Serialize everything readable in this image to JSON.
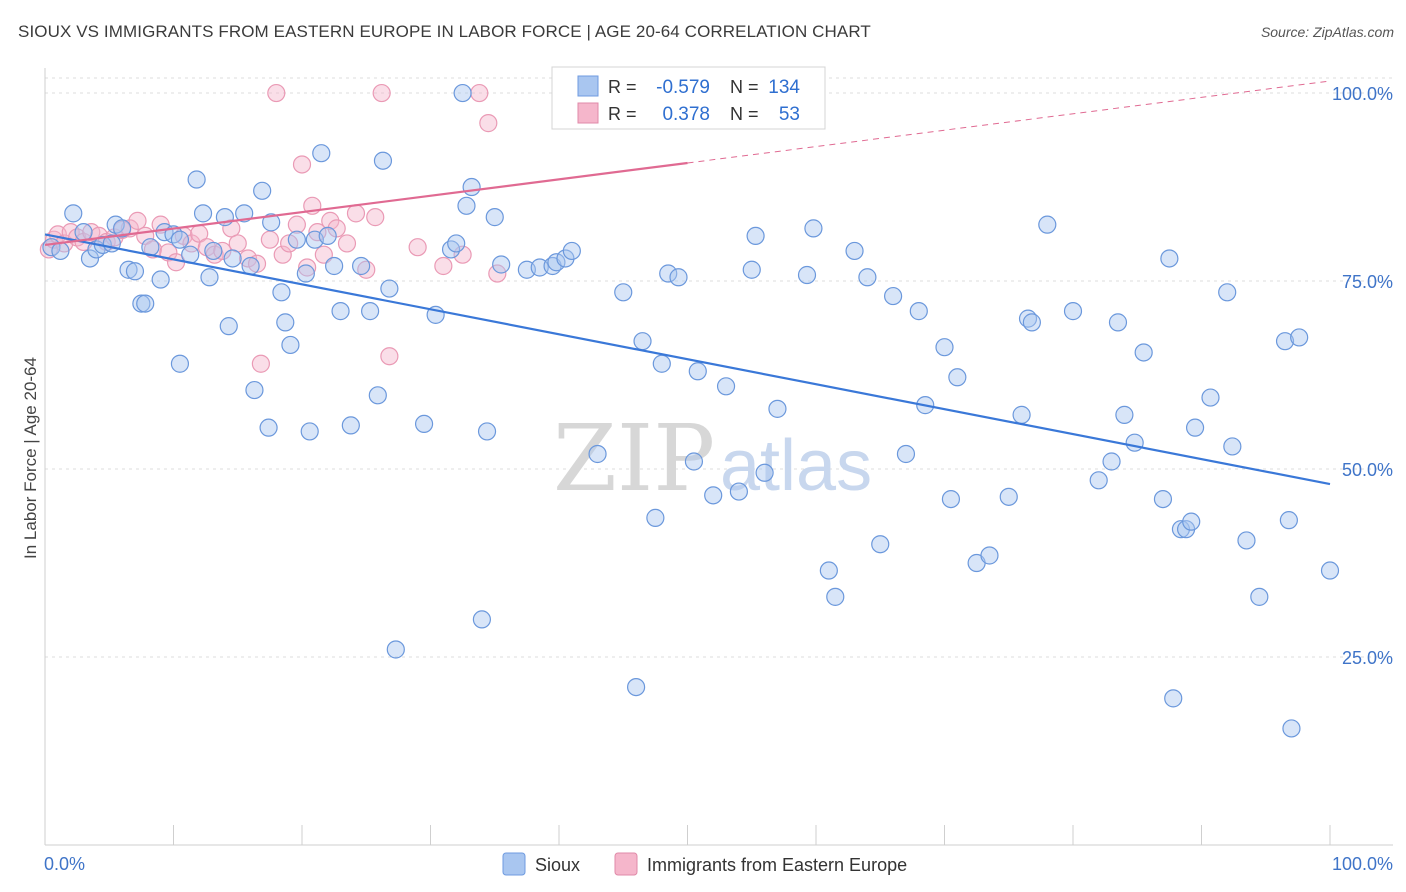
{
  "title": "SIOUX VS IMMIGRANTS FROM EASTERN EUROPE IN LABOR FORCE | AGE 20-64 CORRELATION CHART",
  "source": "Source: ZipAtlas.com",
  "watermark": {
    "zip": "ZIP",
    "atlas": "atlas"
  },
  "colors": {
    "blue": "#3a78d8",
    "blue_fill": "#a9c6f0",
    "pink": "#e06a92",
    "pink_fill": "#f5b6cb",
    "tick": "#3f74c8"
  },
  "chart_data": {
    "type": "scatter",
    "title": "SIOUX VS IMMIGRANTS FROM EASTERN EUROPE IN LABOR FORCE | AGE 20-64 CORRELATION CHART",
    "xlabel": "",
    "ylabel": "In Labor Force | Age 20-64",
    "xlim": [
      0,
      100
    ],
    "ylim": [
      0,
      102
    ],
    "x_tick_labels": [
      "0.0%",
      "100.0%"
    ],
    "y_ticks": [
      25,
      50,
      75,
      100
    ],
    "y_tick_labels": [
      "25.0%",
      "50.0%",
      "75.0%",
      "100.0%"
    ],
    "grid": true,
    "legend_position": "bottom-center",
    "stats": [
      {
        "r_label": "R =",
        "r": "-0.579",
        "n_label": "N =",
        "n": "134"
      },
      {
        "r_label": "R =",
        "r": "0.378",
        "n_label": "N =",
        "n": "53"
      }
    ],
    "series": [
      {
        "name": "Sioux",
        "trend": {
          "x": [
            0,
            100
          ],
          "y": [
            81.2,
            48.0
          ]
        },
        "points": [
          [
            0.5,
            79.5
          ],
          [
            1.2,
            79.0
          ],
          [
            2.2,
            84.0
          ],
          [
            3.0,
            81.5
          ],
          [
            3.5,
            78.0
          ],
          [
            4.0,
            79.2
          ],
          [
            4.5,
            79.8
          ],
          [
            5.2,
            80.0
          ],
          [
            5.5,
            82.5
          ],
          [
            6.0,
            82.0
          ],
          [
            6.5,
            76.5
          ],
          [
            7.0,
            76.3
          ],
          [
            7.5,
            72.0
          ],
          [
            7.8,
            72.0
          ],
          [
            8.2,
            79.5
          ],
          [
            9.0,
            75.2
          ],
          [
            9.3,
            81.5
          ],
          [
            10.0,
            81.2
          ],
          [
            10.5,
            80.5
          ],
          [
            10.5,
            64.0
          ],
          [
            11.3,
            78.5
          ],
          [
            11.8,
            88.5
          ],
          [
            12.3,
            84.0
          ],
          [
            12.8,
            75.5
          ],
          [
            13.1,
            79.0
          ],
          [
            14.0,
            83.5
          ],
          [
            14.3,
            69.0
          ],
          [
            14.6,
            78.0
          ],
          [
            15.5,
            84.0
          ],
          [
            16.0,
            77.0
          ],
          [
            16.3,
            60.5
          ],
          [
            16.9,
            87.0
          ],
          [
            17.4,
            55.5
          ],
          [
            17.6,
            82.8
          ],
          [
            18.4,
            73.5
          ],
          [
            18.7,
            69.5
          ],
          [
            19.1,
            66.5
          ],
          [
            19.6,
            80.5
          ],
          [
            20.3,
            76.0
          ],
          [
            20.6,
            55.0
          ],
          [
            21.0,
            80.5
          ],
          [
            21.5,
            92.0
          ],
          [
            22.0,
            81.0
          ],
          [
            22.5,
            77.0
          ],
          [
            23.0,
            71.0
          ],
          [
            23.8,
            55.8
          ],
          [
            24.6,
            77.0
          ],
          [
            25.3,
            71.0
          ],
          [
            25.9,
            59.8
          ],
          [
            26.3,
            91.0
          ],
          [
            26.8,
            74.0
          ],
          [
            27.3,
            26.0
          ],
          [
            29.5,
            56.0
          ],
          [
            30.4,
            70.5
          ],
          [
            31.6,
            79.2
          ],
          [
            32.0,
            80.0
          ],
          [
            32.5,
            100.0
          ],
          [
            32.8,
            85.0
          ],
          [
            33.2,
            87.5
          ],
          [
            34.0,
            30.0
          ],
          [
            34.4,
            55.0
          ],
          [
            35.0,
            83.5
          ],
          [
            35.5,
            77.2
          ],
          [
            37.5,
            76.5
          ],
          [
            38.5,
            76.8
          ],
          [
            39.5,
            77.0
          ],
          [
            39.8,
            77.5
          ],
          [
            40.5,
            78.0
          ],
          [
            41.0,
            79.0
          ],
          [
            43.0,
            52.0
          ],
          [
            45.0,
            73.5
          ],
          [
            46.0,
            21.0
          ],
          [
            46.5,
            67.0
          ],
          [
            47.5,
            43.5
          ],
          [
            48.0,
            64.0
          ],
          [
            48.5,
            76.0
          ],
          [
            49.3,
            75.5
          ],
          [
            50.5,
            51.0
          ],
          [
            50.8,
            63.0
          ],
          [
            52.0,
            46.5
          ],
          [
            53.0,
            61.0
          ],
          [
            54.0,
            47.0
          ],
          [
            55.0,
            76.5
          ],
          [
            55.3,
            81.0
          ],
          [
            56.0,
            49.5
          ],
          [
            57.0,
            58.0
          ],
          [
            59.3,
            75.8
          ],
          [
            59.8,
            82.0
          ],
          [
            61.0,
            36.5
          ],
          [
            61.5,
            33.0
          ],
          [
            63.0,
            79.0
          ],
          [
            64.0,
            75.5
          ],
          [
            65.0,
            40.0
          ],
          [
            66.0,
            73.0
          ],
          [
            67.0,
            52.0
          ],
          [
            68.0,
            71.0
          ],
          [
            68.5,
            58.5
          ],
          [
            70.0,
            66.2
          ],
          [
            70.5,
            46.0
          ],
          [
            71.0,
            62.2
          ],
          [
            72.5,
            37.5
          ],
          [
            73.5,
            38.5
          ],
          [
            75.0,
            46.3
          ],
          [
            76.0,
            57.2
          ],
          [
            76.5,
            70.0
          ],
          [
            76.8,
            69.5
          ],
          [
            78.0,
            82.5
          ],
          [
            80.0,
            71.0
          ],
          [
            82.0,
            48.5
          ],
          [
            83.0,
            51.0
          ],
          [
            83.5,
            69.5
          ],
          [
            84.0,
            57.2
          ],
          [
            84.8,
            53.5
          ],
          [
            85.5,
            65.5
          ],
          [
            87.0,
            46.0
          ],
          [
            87.5,
            78.0
          ],
          [
            87.8,
            19.5
          ],
          [
            88.4,
            42.0
          ],
          [
            88.8,
            42.0
          ],
          [
            89.2,
            43.0
          ],
          [
            89.5,
            55.5
          ],
          [
            90.7,
            59.5
          ],
          [
            92.0,
            73.5
          ],
          [
            92.4,
            53.0
          ],
          [
            93.5,
            40.5
          ],
          [
            94.5,
            33.0
          ],
          [
            96.5,
            67.0
          ],
          [
            96.8,
            43.2
          ],
          [
            97.0,
            15.5
          ],
          [
            97.6,
            67.5
          ],
          [
            100.0,
            36.5
          ]
        ]
      },
      {
        "name": "Immigrants from Eastern Europe",
        "trend": {
          "x": [
            0,
            50
          ],
          "y": [
            79.8,
            90.7
          ]
        },
        "trend_dashed": {
          "x": [
            50,
            100
          ],
          "y": [
            90.7,
            101.6
          ]
        },
        "points": [
          [
            0.3,
            79.2
          ],
          [
            0.7,
            80.5
          ],
          [
            1.0,
            81.2
          ],
          [
            1.5,
            80.0
          ],
          [
            2.0,
            81.5
          ],
          [
            2.5,
            80.8
          ],
          [
            3.0,
            80.2
          ],
          [
            3.6,
            81.5
          ],
          [
            4.2,
            81.0
          ],
          [
            4.8,
            80.2
          ],
          [
            5.4,
            80.8
          ],
          [
            6.0,
            81.8
          ],
          [
            6.6,
            82.0
          ],
          [
            7.2,
            83.0
          ],
          [
            7.8,
            81.0
          ],
          [
            8.4,
            79.2
          ],
          [
            9.0,
            82.5
          ],
          [
            9.6,
            78.8
          ],
          [
            10.2,
            77.5
          ],
          [
            10.8,
            81.0
          ],
          [
            11.4,
            80.0
          ],
          [
            12.0,
            81.3
          ],
          [
            12.6,
            79.5
          ],
          [
            13.2,
            78.5
          ],
          [
            13.8,
            79.0
          ],
          [
            14.5,
            82.0
          ],
          [
            15.0,
            80.0
          ],
          [
            15.8,
            78.0
          ],
          [
            16.5,
            77.3
          ],
          [
            16.8,
            64.0
          ],
          [
            17.5,
            80.5
          ],
          [
            18.0,
            100.0
          ],
          [
            18.5,
            78.5
          ],
          [
            19.0,
            80.0
          ],
          [
            19.6,
            82.5
          ],
          [
            20.0,
            90.5
          ],
          [
            20.4,
            76.8
          ],
          [
            20.8,
            85.0
          ],
          [
            21.2,
            81.5
          ],
          [
            21.7,
            78.5
          ],
          [
            22.2,
            83.0
          ],
          [
            22.7,
            82.0
          ],
          [
            23.5,
            80.0
          ],
          [
            24.2,
            84.0
          ],
          [
            25.0,
            76.5
          ],
          [
            25.7,
            83.5
          ],
          [
            26.2,
            100.0
          ],
          [
            26.8,
            65.0
          ],
          [
            29.0,
            79.5
          ],
          [
            31.0,
            77.0
          ],
          [
            32.5,
            78.5
          ],
          [
            33.8,
            100.0
          ],
          [
            34.5,
            96.0
          ],
          [
            35.2,
            76.0
          ]
        ]
      }
    ]
  },
  "legend": {
    "items": [
      "Sioux",
      "Immigrants from Eastern Europe"
    ]
  }
}
